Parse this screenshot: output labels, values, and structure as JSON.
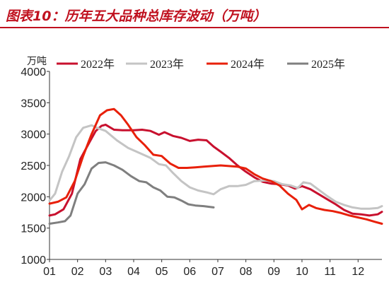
{
  "title": "图表10：历年五大品种总库存波动（万吨）",
  "chart_data": {
    "type": "line",
    "unit_label": "万吨",
    "ylim": [
      1000,
      4000
    ],
    "yticks": [
      1000,
      1500,
      2000,
      2500,
      3000,
      3500,
      4000
    ],
    "xticks": [
      "01",
      "02",
      "03",
      "04",
      "05",
      "06",
      "07",
      "08",
      "09",
      "10",
      "11",
      "12"
    ],
    "xlim": [
      1,
      12.85
    ],
    "grid": false,
    "legend_position": "top",
    "series": [
      {
        "name": "2022年",
        "color": "#c8102e",
        "x": [
          1.0,
          1.2,
          1.5,
          1.8,
          2.1,
          2.4,
          2.65,
          2.85,
          3.0,
          3.3,
          3.6,
          4.0,
          4.3,
          4.6,
          4.9,
          5.1,
          5.4,
          5.7,
          6.0,
          6.3,
          6.6,
          6.85,
          7.1,
          7.4,
          7.7,
          8.0,
          8.3,
          8.6,
          8.9,
          9.2,
          9.5,
          9.75,
          10.0,
          10.3,
          10.6,
          10.9,
          11.2,
          11.5,
          11.8,
          12.1,
          12.4,
          12.7,
          12.85
        ],
        "y": [
          1700,
          1720,
          1800,
          2050,
          2600,
          2850,
          3050,
          3130,
          3150,
          3070,
          3060,
          3060,
          3070,
          3050,
          2990,
          3030,
          2970,
          2940,
          2890,
          2910,
          2900,
          2800,
          2720,
          2620,
          2500,
          2400,
          2310,
          2240,
          2210,
          2200,
          2180,
          2130,
          2170,
          2120,
          2040,
          1960,
          1880,
          1790,
          1730,
          1720,
          1700,
          1720,
          1760
        ]
      },
      {
        "name": "2023年",
        "color": "#c4c4c4",
        "x": [
          1.0,
          1.2,
          1.45,
          1.7,
          1.95,
          2.2,
          2.5,
          2.75,
          3.0,
          3.4,
          3.8,
          4.2,
          4.6,
          4.9,
          5.15,
          5.4,
          5.7,
          6.0,
          6.3,
          6.6,
          6.85,
          7.1,
          7.4,
          7.7,
          8.0,
          8.3,
          8.7,
          9.0,
          9.3,
          9.6,
          9.85,
          10.05,
          10.3,
          10.6,
          10.9,
          11.2,
          11.5,
          11.8,
          12.1,
          12.4,
          12.7,
          12.85
        ],
        "y": [
          1940,
          2050,
          2400,
          2650,
          2950,
          3100,
          3140,
          3090,
          3050,
          2900,
          2780,
          2700,
          2620,
          2520,
          2500,
          2380,
          2250,
          2150,
          2100,
          2070,
          2040,
          2120,
          2170,
          2170,
          2190,
          2250,
          2260,
          2250,
          2200,
          2180,
          2140,
          2230,
          2210,
          2110,
          2010,
          1920,
          1870,
          1830,
          1810,
          1810,
          1820,
          1850
        ]
      },
      {
        "name": "2024年",
        "color": "#e8200a",
        "x": [
          1.0,
          1.3,
          1.6,
          1.9,
          2.2,
          2.5,
          2.8,
          3.05,
          3.3,
          3.55,
          3.8,
          4.1,
          4.4,
          4.7,
          5.0,
          5.3,
          5.6,
          5.9,
          6.2,
          6.5,
          6.8,
          7.1,
          7.4,
          7.7,
          8.0,
          8.3,
          8.6,
          8.9,
          9.2,
          9.5,
          9.8,
          10.0,
          10.25,
          10.5,
          10.8,
          11.1,
          11.4,
          11.7,
          12.0,
          12.3,
          12.6,
          12.85
        ],
        "y": [
          1890,
          1920,
          1990,
          2250,
          2650,
          3000,
          3300,
          3380,
          3400,
          3300,
          3150,
          2950,
          2820,
          2670,
          2650,
          2530,
          2460,
          2460,
          2470,
          2480,
          2490,
          2500,
          2490,
          2480,
          2450,
          2360,
          2290,
          2250,
          2180,
          2050,
          1950,
          1800,
          1870,
          1820,
          1790,
          1770,
          1740,
          1700,
          1670,
          1640,
          1600,
          1570
        ]
      },
      {
        "name": "2025年",
        "color": "#7f7f7f",
        "x": [
          1.0,
          1.3,
          1.55,
          1.75,
          2.0,
          2.25,
          2.5,
          2.75,
          3.0,
          3.3,
          3.6,
          3.9,
          4.2,
          4.45,
          4.7,
          4.95,
          5.2,
          5.45,
          5.7,
          5.95,
          6.2,
          6.5,
          6.85
        ],
        "y": [
          1570,
          1590,
          1610,
          1700,
          2050,
          2200,
          2450,
          2540,
          2550,
          2500,
          2430,
          2330,
          2250,
          2230,
          2150,
          2100,
          2000,
          1990,
          1940,
          1880,
          1860,
          1850,
          1830
        ]
      }
    ]
  }
}
